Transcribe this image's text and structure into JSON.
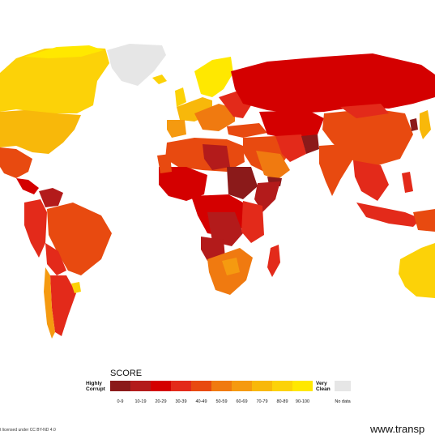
{
  "legend": {
    "title": "SCORE",
    "low_label_line1": "Highly",
    "low_label_line2": "Corrupt",
    "high_label_line1": "Very",
    "high_label_line2": "Clean",
    "no_data_label": "No data",
    "no_data_color": "#e6e6e6",
    "bins": [
      {
        "label": "0-9",
        "color": "#8b1a1a"
      },
      {
        "label": "10-19",
        "color": "#b31b1b"
      },
      {
        "label": "20-29",
        "color": "#d40000"
      },
      {
        "label": "30-39",
        "color": "#e32a1a"
      },
      {
        "label": "40-49",
        "color": "#e84a10"
      },
      {
        "label": "50-59",
        "color": "#f07a10"
      },
      {
        "label": "60-69",
        "color": "#f59a10"
      },
      {
        "label": "70-79",
        "color": "#f8b80a"
      },
      {
        "label": "80-89",
        "color": "#fcd208"
      },
      {
        "label": "90-100",
        "color": "#ffe800"
      }
    ]
  },
  "footer": {
    "license": "t licensed under CC BY-ND 4.0",
    "website": "www.transp"
  }
}
